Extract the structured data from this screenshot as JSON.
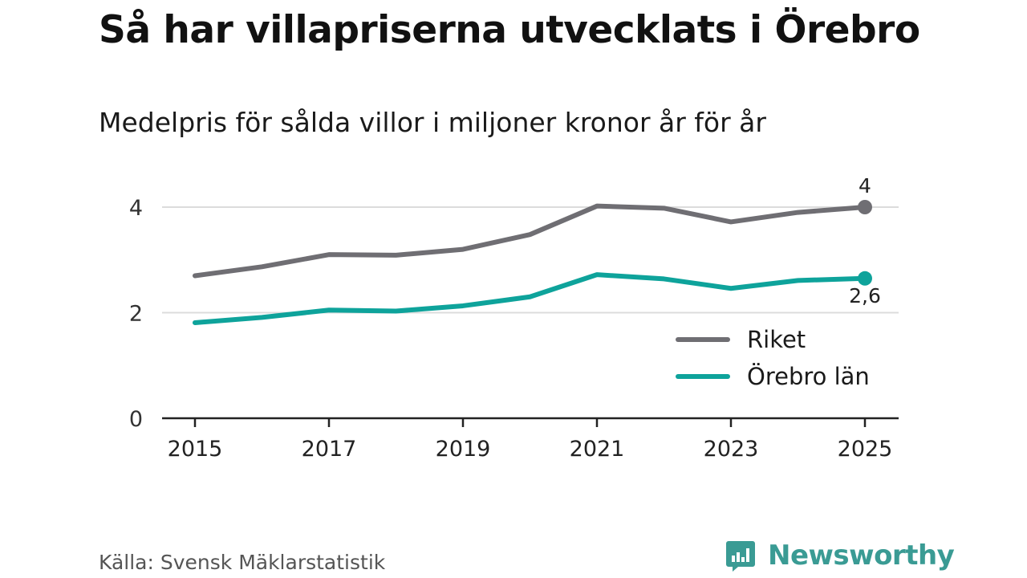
{
  "title": "Så har villapriserna utvecklats i Örebro",
  "subtitle": "Medelpris för sålda villor i miljoner kronor år för år",
  "source": "Källa: Svensk Mäklarstatistik",
  "brand": {
    "name": "Newsworthy",
    "icon": "bar-chart-logo-icon",
    "color": "#3a9b94"
  },
  "chart_data": {
    "type": "line",
    "x": [
      2015,
      2016,
      2017,
      2018,
      2019,
      2020,
      2021,
      2022,
      2023,
      2024,
      2025
    ],
    "x_ticks": [
      "2015",
      "2017",
      "2019",
      "2021",
      "2023",
      "2025"
    ],
    "y_ticks": [
      "0",
      "2",
      "4"
    ],
    "ylim": [
      0,
      4
    ],
    "grid": true,
    "legend_position": "right-center",
    "series": [
      {
        "name": "Riket",
        "color": "#6f6e73",
        "values": [
          2.7,
          2.87,
          3.1,
          3.09,
          3.2,
          3.48,
          4.02,
          3.98,
          3.72,
          3.9,
          4.0
        ],
        "end_label": "4"
      },
      {
        "name": "Örebro län",
        "color": "#0ea39b",
        "values": [
          1.81,
          1.91,
          2.05,
          2.03,
          2.13,
          2.3,
          2.72,
          2.64,
          2.46,
          2.61,
          2.65
        ],
        "end_label": "2,6"
      }
    ]
  }
}
